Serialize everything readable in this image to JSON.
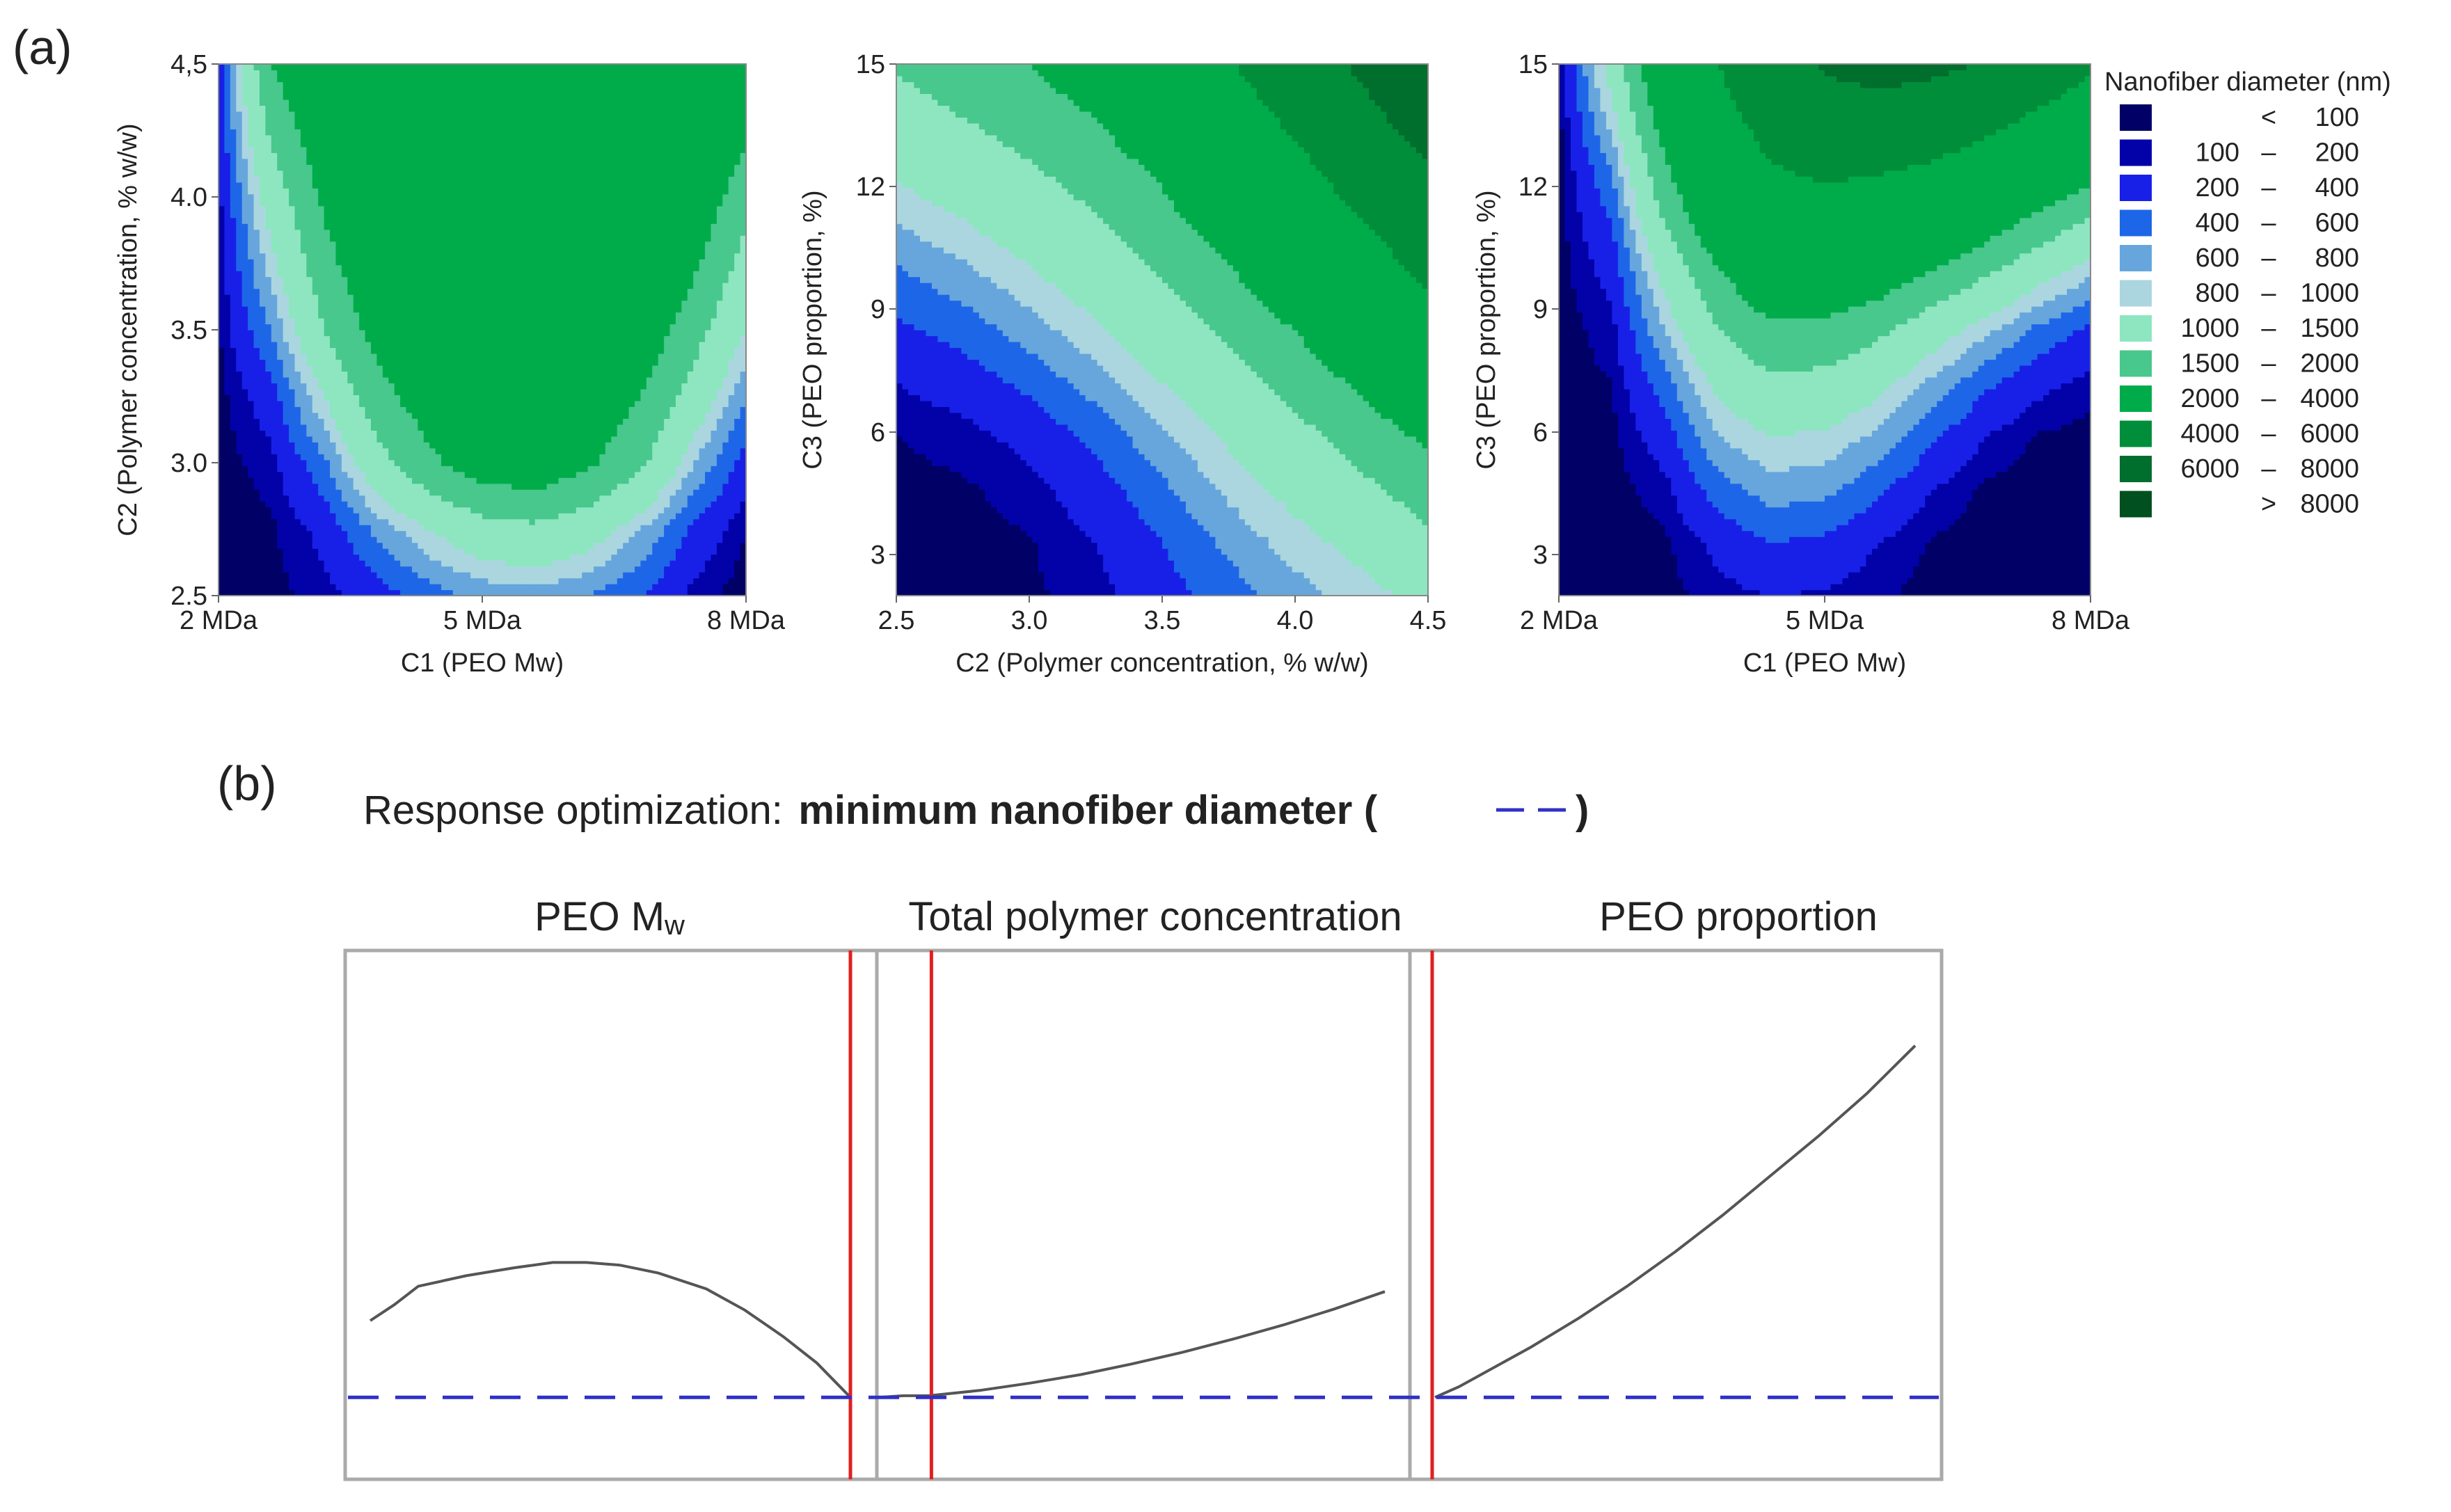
{
  "chart_data": [
    {
      "type": "contour",
      "panel": "(a)",
      "title": "",
      "xlabel": "C1 (PEO Mw)",
      "ylabel": "C2 (Polymer concentration, % w/w)",
      "x_ticks": [
        "2 MDa",
        "5 MDa",
        "8 MDa"
      ],
      "y_ticks": [
        "2.5",
        "3.0",
        "3.5",
        "4.0",
        "4,5"
      ],
      "x_range": [
        2,
        8
      ],
      "y_range": [
        2.5,
        4.5
      ],
      "z": [
        [
          50,
          60,
          150,
          300,
          500,
          650,
          700,
          600,
          400,
          150,
          40
        ],
        [
          50,
          80,
          250,
          650,
          1000,
          1300,
          1400,
          1200,
          800,
          350,
          100
        ],
        [
          50,
          150,
          550,
          1300,
          1900,
          2300,
          2400,
          2100,
          1600,
          800,
          300
        ],
        [
          60,
          300,
          1000,
          1800,
          2300,
          2500,
          2600,
          2400,
          2000,
          1300,
          600
        ],
        [
          80,
          600,
          1500,
          2200,
          2600,
          2800,
          2900,
          2700,
          2400,
          1700,
          1000
        ],
        [
          100,
          900,
          1800,
          2500,
          2900,
          3000,
          3100,
          3000,
          2700,
          2100,
          1300
        ],
        [
          150,
          1200,
          2100,
          2700,
          3000,
          3200,
          3300,
          3100,
          2900,
          2400,
          1700
        ],
        [
          200,
          1600,
          2400,
          2900,
          3200,
          3300,
          3400,
          3200,
          3000,
          2700,
          2100
        ],
        [
          300,
          2000,
          2700,
          3100,
          3300,
          3400,
          3500,
          3300,
          3200,
          3000,
          2500
        ]
      ]
    },
    {
      "type": "contour",
      "panel": "(a)",
      "title": "",
      "xlabel": "C2 (Polymer concentration, % w/w)",
      "ylabel": "C3 (PEO proportion, %)",
      "x_ticks": [
        "2.5",
        "3.0",
        "3.5",
        "4.0",
        "4.5"
      ],
      "y_ticks": [
        "3",
        "6",
        "9",
        "12",
        "15"
      ],
      "x_range": [
        2.5,
        4.5
      ],
      "y_range": [
        2,
        15
      ],
      "z": [
        [
          50,
          60,
          80,
          150,
          300,
          500,
          700,
          900,
          1100
        ],
        [
          50,
          60,
          90,
          200,
          400,
          650,
          900,
          1100,
          1400
        ],
        [
          60,
          80,
          150,
          300,
          550,
          850,
          1100,
          1400,
          1700
        ],
        [
          100,
          150,
          250,
          450,
          750,
          1050,
          1350,
          1700,
          2100
        ],
        [
          200,
          280,
          450,
          700,
          1000,
          1300,
          1650,
          2100,
          2600
        ],
        [
          350,
          480,
          700,
          950,
          1250,
          1600,
          2000,
          2600,
          3300
        ],
        [
          550,
          720,
          950,
          1200,
          1500,
          1900,
          2500,
          3200,
          4200
        ],
        [
          800,
          980,
          1200,
          1450,
          1800,
          2300,
          3000,
          3900,
          5000
        ],
        [
          1050,
          1250,
          1450,
          1700,
          2100,
          2800,
          3600,
          4700,
          5900
        ],
        [
          1300,
          1500,
          1700,
          2000,
          2500,
          3300,
          4300,
          5500,
          6800
        ],
        [
          1550,
          1750,
          2000,
          2400,
          3000,
          3900,
          5000,
          6300,
          7600
        ]
      ]
    },
    {
      "type": "contour",
      "panel": "(a)",
      "title": "",
      "xlabel": "C1 (PEO Mw)",
      "ylabel": "C3 (PEO proportion, %)",
      "x_ticks": [
        "2 MDa",
        "5 MDa",
        "8 MDa"
      ],
      "y_ticks": [
        "3",
        "6",
        "9",
        "12",
        "15"
      ],
      "x_range": [
        2,
        8
      ],
      "y_range": [
        2,
        15
      ],
      "z": [
        [
          50,
          50,
          60,
          150,
          200,
          180,
          120,
          60,
          50,
          50,
          50
        ],
        [
          50,
          50,
          80,
          250,
          400,
          350,
          200,
          90,
          50,
          50,
          50
        ],
        [
          50,
          60,
          150,
          500,
          700,
          650,
          450,
          200,
          80,
          50,
          50
        ],
        [
          50,
          70,
          300,
          800,
          1000,
          950,
          750,
          450,
          200,
          90,
          60
        ],
        [
          50,
          100,
          500,
          1100,
          1400,
          1350,
          1100,
          750,
          450,
          250,
          150
        ],
        [
          50,
          150,
          800,
          1500,
          1900,
          1850,
          1600,
          1200,
          850,
          550,
          350
        ],
        [
          50,
          250,
          1100,
          1900,
          2500,
          2500,
          2300,
          1900,
          1500,
          1100,
          800
        ],
        [
          50,
          400,
          1500,
          2500,
          3200,
          3300,
          3100,
          2800,
          2300,
          1800,
          1400
        ],
        [
          50,
          600,
          1900,
          3000,
          3900,
          4200,
          4100,
          3800,
          3300,
          2700,
          2200
        ],
        [
          60,
          900,
          2300,
          3500,
          4600,
          5200,
          5300,
          5000,
          4500,
          3800,
          3100
        ],
        [
          80,
          1200,
          2700,
          4000,
          5300,
          6200,
          6600,
          6400,
          5900,
          5100,
          4200
        ]
      ]
    }
  ],
  "panel_a": {
    "label": "(a)",
    "legend": {
      "title": "Nanofiber diameter (nm)",
      "levels": [
        100,
        200,
        400,
        600,
        800,
        1000,
        1500,
        2000,
        4000,
        6000,
        8000
      ],
      "entries": [
        {
          "lo": "",
          "sep": "<",
          "hi": "100",
          "color": "#000066"
        },
        {
          "lo": "100",
          "sep": "–",
          "hi": "200",
          "color": "#0202A8"
        },
        {
          "lo": "200",
          "sep": "–",
          "hi": "400",
          "color": "#1820E8"
        },
        {
          "lo": "400",
          "sep": "–",
          "hi": "600",
          "color": "#1E66E8"
        },
        {
          "lo": "600",
          "sep": "–",
          "hi": "800",
          "color": "#66A6DC"
        },
        {
          "lo": "800",
          "sep": "–",
          "hi": "1000",
          "color": "#ABD6E0"
        },
        {
          "lo": "1000",
          "sep": "–",
          "hi": "1500",
          "color": "#8EE6C1"
        },
        {
          "lo": "1500",
          "sep": "–",
          "hi": "2000",
          "color": "#48C88C"
        },
        {
          "lo": "2000",
          "sep": "–",
          "hi": "4000",
          "color": "#00AC4A"
        },
        {
          "lo": "4000",
          "sep": "–",
          "hi": "6000",
          "color": "#008E3A"
        },
        {
          "lo": "6000",
          "sep": "–",
          "hi": "8000",
          "color": "#006E2C"
        },
        {
          "lo": "",
          "sep": ">",
          "hi": "8000",
          "color": "#005020"
        }
      ]
    }
  },
  "panel_b": {
    "label": "(b)",
    "title_prefix": "Response optimization:",
    "title_bold": "minimum nanofiber diameter",
    "paren_open": "(",
    "paren_close": ")",
    "colors": {
      "curve": "#555555",
      "optimum": "#E02020",
      "target": "#3030C8",
      "frame": "#AAAAAA"
    },
    "subplots": [
      {
        "label_main": "PEO M",
        "label_sub": "w",
        "x": [
          0,
          0.05,
          0.1,
          0.2,
          0.3,
          0.38,
          0.45,
          0.52,
          0.6,
          0.7,
          0.78,
          0.86,
          0.93,
          1.0
        ],
        "y": [
          0.3,
          0.33,
          0.365,
          0.385,
          0.4,
          0.41,
          0.41,
          0.405,
          0.39,
          0.36,
          0.32,
          0.27,
          0.22,
          0.155
        ],
        "optimum_x": 1.0
      },
      {
        "label_main": "Total polymer concentration",
        "label_sub": "",
        "x": [
          0,
          0.05,
          0.1,
          0.2,
          0.3,
          0.4,
          0.5,
          0.6,
          0.7,
          0.8,
          0.9,
          1.0
        ],
        "y": [
          0.155,
          0.158,
          0.158,
          0.168,
          0.182,
          0.198,
          0.218,
          0.24,
          0.265,
          0.292,
          0.322,
          0.355
        ],
        "optimum_x": 0.05
      },
      {
        "label_main": "PEO proportion",
        "label_sub": "",
        "x": [
          0,
          0.05,
          0.1,
          0.2,
          0.3,
          0.4,
          0.5,
          0.6,
          0.7,
          0.8,
          0.9,
          0.95,
          1.0
        ],
        "y": [
          0.155,
          0.175,
          0.2,
          0.25,
          0.305,
          0.365,
          0.43,
          0.5,
          0.575,
          0.65,
          0.73,
          0.775,
          0.82
        ],
        "optimum_x": 0.0
      }
    ],
    "target_value": 0.155,
    "y_range": [
      0,
      1
    ]
  }
}
